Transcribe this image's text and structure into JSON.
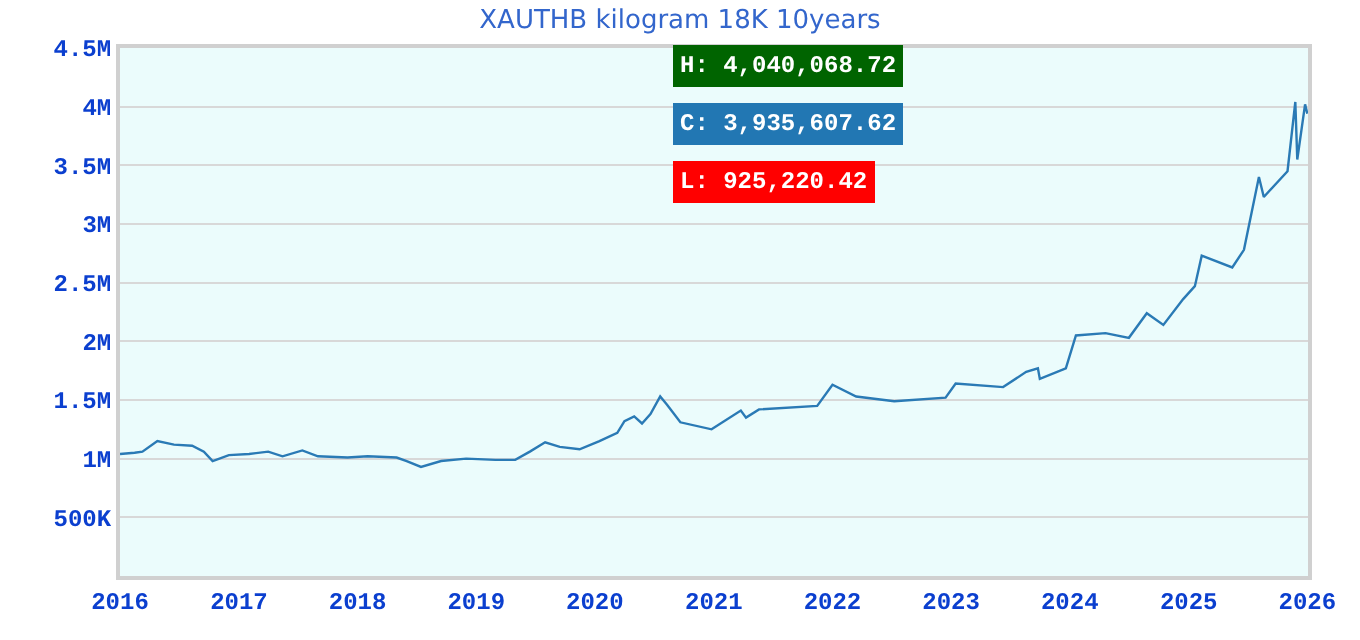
{
  "chart_data": {
    "type": "line",
    "title": "XAUTHB kilogram 18K 10years",
    "x": [
      "2016-01-01",
      "2016-02-15",
      "2016-03-10",
      "2016-04-25",
      "2016-06-15",
      "2016-08-10",
      "2016-09-15",
      "2016-10-12",
      "2016-12-01",
      "2017-02-01",
      "2017-04-01",
      "2017-05-15",
      "2017-07-15",
      "2017-09-01",
      "2017-12-01",
      "2018-02-01",
      "2018-05-01",
      "2018-06-01",
      "2018-07-15",
      "2018-09-15",
      "2018-12-01",
      "2019-03-01",
      "2019-05-01",
      "2019-06-15",
      "2019-08-01",
      "2019-09-15",
      "2019-11-15",
      "2020-01-15",
      "2020-03-10",
      "2020-04-01",
      "2020-05-01",
      "2020-05-25",
      "2020-06-20",
      "2020-07-20",
      "2020-08-10",
      "2020-09-20",
      "2020-12-25",
      "2021-03-25",
      "2021-04-10",
      "2021-05-20",
      "2021-11-15",
      "2022-01-01",
      "2022-03-15",
      "2022-07-10",
      "2022-12-15",
      "2023-01-15",
      "2023-06-10",
      "2023-08-20",
      "2023-09-25",
      "2023-10-01",
      "2023-12-20",
      "2024-01-20",
      "2024-04-20",
      "2024-07-01",
      "2024-08-25",
      "2024-10-15",
      "2024-12-15",
      "2025-01-20",
      "2025-02-10",
      "2025-05-15",
      "2025-06-20",
      "2025-08-05",
      "2025-08-20",
      "2025-11-01",
      "2025-11-25",
      "2025-12-01",
      "2025-12-25",
      "2026-01-01"
    ],
    "series": [
      {
        "color": "#2a7ab5",
        "values": [
          1040000,
          1050000,
          1060000,
          1150000,
          1120000,
          1110000,
          1060000,
          980000,
          1030000,
          1040000,
          1060000,
          1020000,
          1070000,
          1020000,
          1010000,
          1020000,
          1010000,
          980000,
          930000,
          980000,
          1000000,
          990000,
          990000,
          1060000,
          1140000,
          1100000,
          1080000,
          1150000,
          1220000,
          1320000,
          1360000,
          1300000,
          1380000,
          1530000,
          1460000,
          1310000,
          1250000,
          1410000,
          1350000,
          1420000,
          1450000,
          1630000,
          1530000,
          1490000,
          1520000,
          1640000,
          1610000,
          1740000,
          1770000,
          1680000,
          1770000,
          2050000,
          2070000,
          2030000,
          2240000,
          2140000,
          2360000,
          2470000,
          2730000,
          2630000,
          2780000,
          3400000,
          3230000,
          3450000,
          4040000,
          3550000,
          4020000,
          3940000
        ]
      }
    ],
    "xlim": [
      "2016-01-01",
      "2026-01-03"
    ],
    "xticks": [
      "2016",
      "2017",
      "2018",
      "2019",
      "2020",
      "2021",
      "2022",
      "2023",
      "2024",
      "2025",
      "2026"
    ],
    "ylim": [
      0,
      4500000
    ],
    "yticks": [
      {
        "value": 500000,
        "label": "500K"
      },
      {
        "value": 1000000,
        "label": "1M"
      },
      {
        "value": 1500000,
        "label": "1.5M"
      },
      {
        "value": 2000000,
        "label": "2M"
      },
      {
        "value": 2500000,
        "label": "2.5M"
      },
      {
        "value": 3000000,
        "label": "3M"
      },
      {
        "value": 3500000,
        "label": "3.5M"
      },
      {
        "value": 4000000,
        "label": "4M"
      },
      {
        "value": 4500000,
        "label": "4.5M"
      }
    ],
    "grid": "y",
    "marker": "none",
    "line_style": "solid",
    "annotations": [
      "H: 4,040,068.72",
      "C: 3,935,607.62",
      "L: 925,220.42"
    ]
  }
}
